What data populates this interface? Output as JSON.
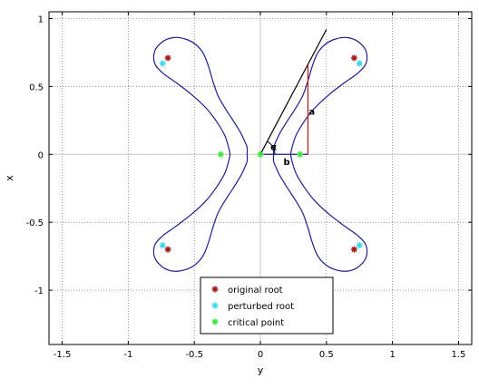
{
  "chart_data": {
    "type": "line",
    "xlabel": "y",
    "ylabel": "x",
    "xlim": [
      -1.6,
      1.6
    ],
    "ylim": [
      -1.4,
      1.05
    ],
    "grid": true,
    "legend_position": "bottom-center",
    "x_ticks": [
      -1.5,
      -1,
      -0.5,
      0,
      0.5,
      1,
      1.5
    ],
    "x_tick_labels": [
      "-1.5",
      "-1",
      "-0.5",
      "0",
      "0.5",
      "1",
      "1.5"
    ],
    "y_ticks": [
      1,
      0.5,
      0,
      -0.5,
      -1
    ],
    "y_tick_labels": [
      "1",
      "0.5",
      "0",
      "-0.5",
      "-1"
    ],
    "curve": {
      "color": "#1f1f8a",
      "points": [
        [
          -0.1,
          0.0
        ],
        [
          -0.1,
          0.05
        ],
        [
          -0.12,
          0.1
        ],
        [
          -0.15,
          0.16
        ],
        [
          -0.2,
          0.24
        ],
        [
          -0.26,
          0.33
        ],
        [
          -0.32,
          0.43
        ],
        [
          -0.36,
          0.54
        ],
        [
          -0.39,
          0.64
        ],
        [
          -0.43,
          0.74
        ],
        [
          -0.49,
          0.81
        ],
        [
          -0.57,
          0.85
        ],
        [
          -0.66,
          0.86
        ],
        [
          -0.74,
          0.83
        ],
        [
          -0.8,
          0.76
        ],
        [
          -0.8,
          0.67
        ],
        [
          -0.74,
          0.6
        ],
        [
          -0.64,
          0.53
        ],
        [
          -0.52,
          0.44
        ],
        [
          -0.41,
          0.34
        ],
        [
          -0.33,
          0.24
        ],
        [
          -0.27,
          0.14
        ],
        [
          -0.24,
          0.05
        ],
        [
          -0.23,
          0.0
        ],
        [
          -0.24,
          -0.05
        ],
        [
          -0.27,
          -0.14
        ],
        [
          -0.33,
          -0.24
        ],
        [
          -0.41,
          -0.34
        ],
        [
          -0.52,
          -0.44
        ],
        [
          -0.64,
          -0.53
        ],
        [
          -0.74,
          -0.6
        ],
        [
          -0.8,
          -0.67
        ],
        [
          -0.8,
          -0.76
        ],
        [
          -0.74,
          -0.83
        ],
        [
          -0.66,
          -0.86
        ],
        [
          -0.57,
          -0.85
        ],
        [
          -0.49,
          -0.81
        ],
        [
          -0.43,
          -0.74
        ],
        [
          -0.39,
          -0.64
        ],
        [
          -0.36,
          -0.54
        ],
        [
          -0.32,
          -0.43
        ],
        [
          -0.26,
          -0.33
        ],
        [
          -0.2,
          -0.24
        ],
        [
          -0.15,
          -0.16
        ],
        [
          -0.12,
          -0.1
        ],
        [
          -0.1,
          -0.05
        ],
        [
          -0.1,
          0.0
        ],
        null,
        [
          0.1,
          0.0
        ],
        [
          0.1,
          0.05
        ],
        [
          0.12,
          0.1
        ],
        [
          0.15,
          0.16
        ],
        [
          0.2,
          0.24
        ],
        [
          0.26,
          0.33
        ],
        [
          0.32,
          0.43
        ],
        [
          0.36,
          0.54
        ],
        [
          0.39,
          0.64
        ],
        [
          0.43,
          0.74
        ],
        [
          0.49,
          0.81
        ],
        [
          0.57,
          0.85
        ],
        [
          0.66,
          0.86
        ],
        [
          0.74,
          0.83
        ],
        [
          0.8,
          0.76
        ],
        [
          0.8,
          0.67
        ],
        [
          0.74,
          0.6
        ],
        [
          0.64,
          0.53
        ],
        [
          0.52,
          0.44
        ],
        [
          0.41,
          0.34
        ],
        [
          0.33,
          0.24
        ],
        [
          0.27,
          0.14
        ],
        [
          0.24,
          0.05
        ],
        [
          0.23,
          0.0
        ],
        [
          0.24,
          -0.05
        ],
        [
          0.27,
          -0.14
        ],
        [
          0.33,
          -0.24
        ],
        [
          0.41,
          -0.34
        ],
        [
          0.52,
          -0.44
        ],
        [
          0.64,
          -0.53
        ],
        [
          0.74,
          -0.6
        ],
        [
          0.8,
          -0.67
        ],
        [
          0.8,
          -0.76
        ],
        [
          0.74,
          -0.83
        ],
        [
          0.66,
          -0.86
        ],
        [
          0.57,
          -0.85
        ],
        [
          0.49,
          -0.81
        ],
        [
          0.43,
          -0.74
        ],
        [
          0.39,
          -0.64
        ],
        [
          0.36,
          -0.54
        ],
        [
          0.32,
          -0.43
        ],
        [
          0.26,
          -0.33
        ],
        [
          0.2,
          -0.24
        ],
        [
          0.15,
          -0.16
        ],
        [
          0.12,
          -0.1
        ],
        [
          0.1,
          -0.05
        ],
        [
          0.1,
          0.0
        ]
      ]
    },
    "series": [
      {
        "name": "original root",
        "color": "#a01818",
        "marker": "*",
        "points": [
          [
            -0.7,
            0.71
          ],
          [
            0.71,
            0.71
          ],
          [
            -0.7,
            -0.7
          ],
          [
            0.71,
            -0.7
          ]
        ]
      },
      {
        "name": "perturbed root",
        "color": "#3ad8e8",
        "marker": "*",
        "points": [
          [
            -0.74,
            0.67
          ],
          [
            0.75,
            0.67
          ],
          [
            -0.74,
            -0.67
          ],
          [
            0.75,
            -0.67
          ]
        ]
      },
      {
        "name": "critical point",
        "color": "#3ce63c",
        "marker": "*",
        "points": [
          [
            -0.3,
            0.0
          ],
          [
            0.0,
            0.0
          ],
          [
            0.3,
            0.0
          ]
        ]
      }
    ],
    "annotations": {
      "tangent_line": {
        "color": "#000000",
        "from": [
          0.0,
          0.0
        ],
        "to": [
          0.5,
          0.92
        ]
      },
      "horizontal_b": {
        "color": "#1f1f8a",
        "from": [
          0.0,
          0.0
        ],
        "to": [
          0.36,
          0.0
        ]
      },
      "vertical_a": {
        "color": "#c01010",
        "from": [
          0.36,
          0.0
        ],
        "to": [
          0.36,
          0.66
        ]
      },
      "labels": [
        {
          "text": "a",
          "x": 0.39,
          "y": 0.32
        },
        {
          "text": "b",
          "x": 0.2,
          "y": -0.05
        },
        {
          "text": "α",
          "x": 0.1,
          "y": 0.06
        }
      ]
    }
  }
}
